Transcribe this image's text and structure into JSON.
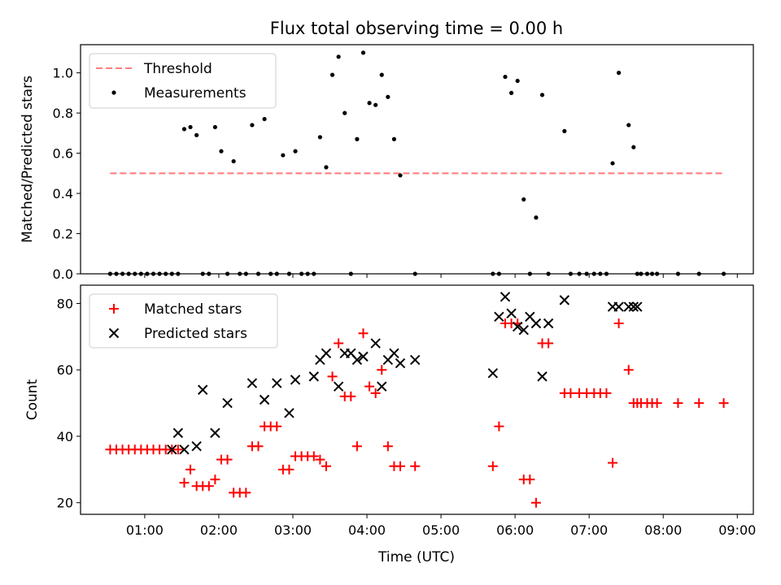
{
  "chart_data": [
    {
      "type": "scatter",
      "title": "Flux total observing time = 0.00 h",
      "ylabel": "Matched/Predicted stars",
      "xlabel": "",
      "xlim": [
        "00:08",
        "09:13"
      ],
      "ylim": [
        0,
        1.14
      ],
      "yticks": [
        "0.0",
        "0.2",
        "0.4",
        "0.6",
        "0.8",
        "1.0"
      ],
      "legend_position": "top-left",
      "series": [
        {
          "name": "Threshold",
          "kind": "dashed-line",
          "color": "#ff7f7f",
          "x": [
            "00:32",
            "08:49"
          ],
          "y": [
            0.5,
            0.5
          ]
        },
        {
          "name": "Measurements",
          "kind": "dots",
          "color": "#000000",
          "x": [
            "00:32",
            "00:37",
            "00:42",
            "00:47",
            "00:52",
            "00:57",
            "01:02",
            "01:07",
            "01:12",
            "01:17",
            "01:22",
            "01:27",
            "01:32",
            "01:37",
            "01:42",
            "01:47",
            "01:52",
            "01:57",
            "02:02",
            "02:07",
            "02:12",
            "02:17",
            "02:22",
            "02:27",
            "02:32",
            "02:37",
            "02:42",
            "02:47",
            "02:52",
            "02:57",
            "03:02",
            "03:07",
            "03:12",
            "03:17",
            "03:22",
            "03:27",
            "03:32",
            "03:37",
            "03:42",
            "03:47",
            "03:52",
            "03:57",
            "04:02",
            "04:07",
            "04:12",
            "04:17",
            "04:22",
            "04:27",
            "04:39",
            "05:42",
            "05:47",
            "05:52",
            "05:57",
            "06:02",
            "06:07",
            "06:12",
            "06:17",
            "06:22",
            "06:27",
            "06:40",
            "06:45",
            "06:52",
            "06:58",
            "07:04",
            "07:09",
            "07:14",
            "07:19",
            "07:24",
            "07:32",
            "07:36",
            "07:39",
            "07:42",
            "07:47",
            "07:51",
            "07:55",
            "08:12",
            "08:29",
            "08:49"
          ],
          "y": [
            0,
            0,
            0,
            0,
            0,
            0,
            0,
            0,
            0,
            0,
            0,
            0,
            0.72,
            0.73,
            0.69,
            0,
            0,
            0.73,
            0.61,
            0,
            0.56,
            0,
            0,
            0.74,
            0,
            0.77,
            0,
            0,
            0.59,
            0,
            0.61,
            0,
            0,
            0,
            0.68,
            0.53,
            0.99,
            1.08,
            0.8,
            0,
            0.67,
            1.1,
            0.85,
            0.84,
            0.99,
            0.88,
            0.67,
            0.49,
            0,
            0,
            0,
            0.98,
            0.9,
            0.96,
            0.37,
            0,
            0.28,
            0.89,
            0,
            0.71,
            0,
            0,
            0,
            0,
            0,
            0,
            0.55,
            1.0,
            0.74,
            0.63,
            0,
            0,
            0,
            0,
            0,
            0,
            0,
            0
          ]
        }
      ]
    },
    {
      "type": "scatter",
      "title": "",
      "ylabel": "Count",
      "xlabel": "Time (UTC)",
      "xlim": [
        "00:08",
        "09:13"
      ],
      "ylim": [
        16.5,
        85.5
      ],
      "yticks": [
        "20",
        "40",
        "60",
        "80"
      ],
      "xticks": [
        "01:00",
        "02:00",
        "03:00",
        "04:00",
        "05:00",
        "06:00",
        "07:00",
        "08:00",
        "09:00"
      ],
      "legend_position": "top-left",
      "series": [
        {
          "name": "Matched stars",
          "kind": "plus",
          "color": "#ff0000",
          "x": [
            "00:32",
            "00:37",
            "00:42",
            "00:47",
            "00:52",
            "00:57",
            "01:02",
            "01:07",
            "01:12",
            "01:17",
            "01:22",
            "01:27",
            "01:32",
            "01:37",
            "01:42",
            "01:47",
            "01:52",
            "01:57",
            "02:02",
            "02:07",
            "02:12",
            "02:17",
            "02:22",
            "02:27",
            "02:32",
            "02:37",
            "02:42",
            "02:47",
            "02:52",
            "02:57",
            "03:02",
            "03:07",
            "03:12",
            "03:17",
            "03:22",
            "03:27",
            "03:32",
            "03:37",
            "03:42",
            "03:47",
            "03:52",
            "03:57",
            "04:02",
            "04:07",
            "04:12",
            "04:17",
            "04:22",
            "04:27",
            "04:39",
            "05:42",
            "05:47",
            "05:52",
            "05:57",
            "06:02",
            "06:07",
            "06:12",
            "06:17",
            "06:22",
            "06:27",
            "06:40",
            "06:45",
            "06:52",
            "06:58",
            "07:04",
            "07:09",
            "07:14",
            "07:19",
            "07:24",
            "07:32",
            "07:36",
            "07:39",
            "07:42",
            "07:47",
            "07:51",
            "07:55",
            "08:12",
            "08:29",
            "08:49"
          ],
          "y": [
            36,
            36,
            36,
            36,
            36,
            36,
            36,
            36,
            36,
            36,
            36,
            36,
            26,
            30,
            25,
            25,
            25,
            27,
            33,
            33,
            23,
            23,
            23,
            37,
            37,
            43,
            43,
            43,
            30,
            30,
            34,
            34,
            34,
            34,
            33,
            31,
            58,
            68,
            52,
            52,
            37,
            71,
            55,
            53,
            60,
            37,
            31,
            31,
            31,
            31,
            43,
            74,
            74,
            74,
            27,
            27,
            20,
            68,
            68,
            53,
            53,
            53,
            53,
            53,
            53,
            53,
            32,
            74,
            60,
            50,
            50,
            50,
            50,
            50,
            50,
            50,
            50,
            50
          ]
        },
        {
          "name": "Predicted stars",
          "kind": "cross",
          "color": "#000000",
          "x": [
            "01:22",
            "01:27",
            "01:32",
            "01:42",
            "01:47",
            "01:57",
            "02:07",
            "02:27",
            "02:37",
            "02:47",
            "02:57",
            "03:02",
            "03:17",
            "03:22",
            "03:27",
            "03:37",
            "03:42",
            "03:47",
            "03:52",
            "03:57",
            "04:07",
            "04:12",
            "04:17",
            "04:22",
            "04:27",
            "04:39",
            "05:42",
            "05:47",
            "05:52",
            "05:57",
            "06:02",
            "06:07",
            "06:12",
            "06:17",
            "06:22",
            "06:27",
            "06:40",
            "07:19",
            "07:24",
            "07:32",
            "07:36",
            "07:39"
          ],
          "y": [
            36,
            41,
            36,
            37,
            54,
            41,
            50,
            56,
            51,
            56,
            47,
            57,
            58,
            63,
            65,
            55,
            65,
            65,
            63,
            64,
            68,
            55,
            63,
            65,
            62,
            63,
            59,
            76,
            82,
            77,
            73,
            72,
            76,
            74,
            58,
            74,
            81,
            79,
            79,
            79,
            79,
            79
          ]
        }
      ]
    }
  ]
}
